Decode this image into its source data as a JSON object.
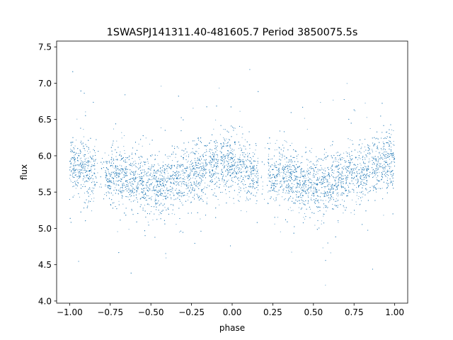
{
  "chart_data": {
    "type": "scatter",
    "title": "1SWASPJ141311.40-481605.7 Period 3850075.5s",
    "xlabel": "phase",
    "ylabel": "flux",
    "xlim": [
      -1.08,
      1.08
    ],
    "ylim": [
      3.97,
      7.58
    ],
    "xticks": [
      -1.0,
      -0.75,
      -0.5,
      -0.25,
      0.0,
      0.25,
      0.5,
      0.75,
      1.0
    ],
    "xtick_labels": [
      "−1.00",
      "−0.75",
      "−0.50",
      "−0.25",
      "0.00",
      "0.25",
      "0.50",
      "0.75",
      "1.00"
    ],
    "yticks": [
      4.0,
      4.5,
      5.0,
      5.5,
      6.0,
      6.5,
      7.0,
      7.5
    ],
    "ytick_labels": [
      "4.0",
      "4.5",
      "5.0",
      "5.5",
      "6.0",
      "6.5",
      "7.0",
      "7.5"
    ],
    "grid": false,
    "marker_color": "#1f77b4",
    "phase_range": [
      -1.0,
      1.0
    ],
    "flux_median_profile": [
      {
        "phase": 0.0,
        "flux": 5.9
      },
      {
        "phase": 0.05,
        "flux": 5.85
      },
      {
        "phase": 0.1,
        "flux": 5.78
      },
      {
        "phase": 0.15,
        "flux": 5.72
      },
      {
        "phase": 0.2,
        "flux": 5.78
      },
      {
        "phase": 0.25,
        "flux": 5.72
      },
      {
        "phase": 0.3,
        "flux": 5.75
      },
      {
        "phase": 0.35,
        "flux": 5.7
      },
      {
        "phase": 0.4,
        "flux": 5.68
      },
      {
        "phase": 0.45,
        "flux": 5.6
      },
      {
        "phase": 0.5,
        "flux": 5.62
      },
      {
        "phase": 0.55,
        "flux": 5.58
      },
      {
        "phase": 0.6,
        "flux": 5.62
      },
      {
        "phase": 0.65,
        "flux": 5.68
      },
      {
        "phase": 0.7,
        "flux": 5.72
      },
      {
        "phase": 0.75,
        "flux": 5.75
      },
      {
        "phase": 0.8,
        "flux": 5.78
      },
      {
        "phase": 0.85,
        "flux": 5.8
      },
      {
        "phase": 0.9,
        "flux": 5.88
      },
      {
        "phase": 0.95,
        "flux": 5.9
      },
      {
        "phase": 1.0,
        "flux": 5.92
      }
    ],
    "phase_gaps": [
      [
        0.16,
        0.22
      ],
      [
        0.85,
        0.86
      ]
    ],
    "flux_range": [
      4.1,
      7.45
    ]
  }
}
